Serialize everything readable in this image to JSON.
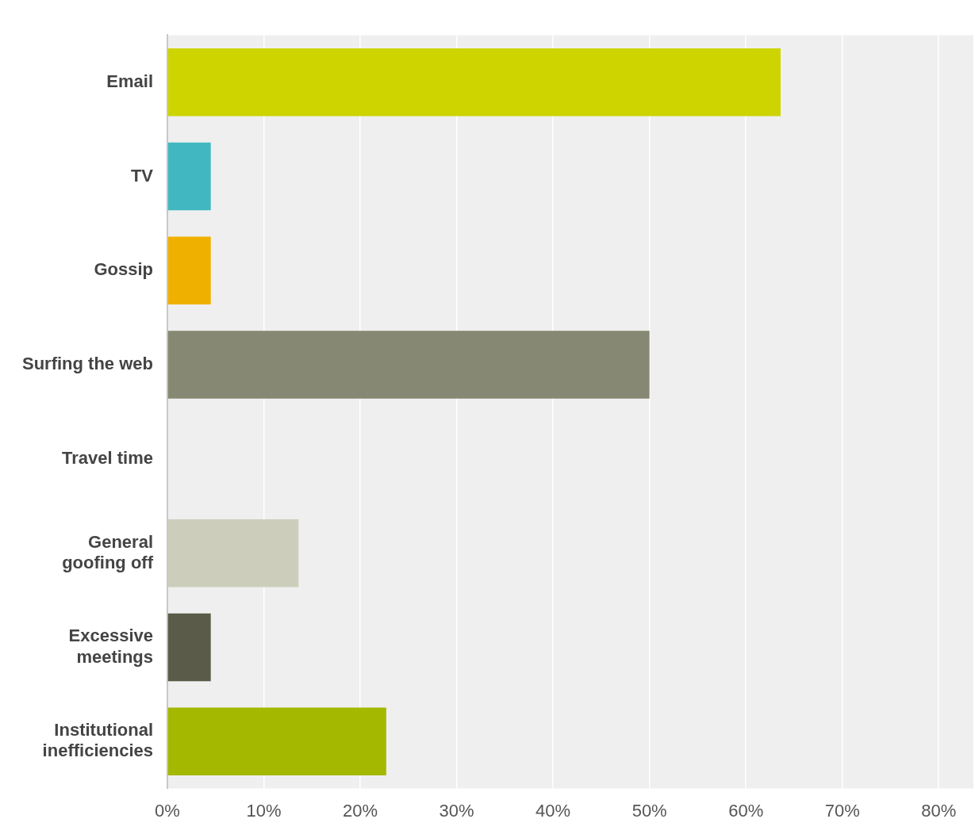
{
  "chart_data": {
    "type": "bar",
    "orientation": "horizontal",
    "categories": [
      "Email",
      "TV",
      "Gossip",
      "Surfing the web",
      "Travel time",
      "General goofing off",
      "Excessive meetings",
      "Institutional inefficiencies"
    ],
    "values": [
      63.6,
      4.5,
      4.5,
      50,
      0,
      13.6,
      4.5,
      22.7
    ],
    "colors": [
      "#cdd400",
      "#41b8c1",
      "#f0b000",
      "#878873",
      "#9aa0a0",
      "#cccebb",
      "#5a5b48",
      "#a5b800"
    ],
    "xlim": [
      0,
      83.6
    ],
    "xticks": [
      {
        "value": 0,
        "label": "0%"
      },
      {
        "value": 10,
        "label": "10%"
      },
      {
        "value": 20,
        "label": "20%"
      },
      {
        "value": 30,
        "label": "30%"
      },
      {
        "value": 40,
        "label": "40%"
      },
      {
        "value": 50,
        "label": "50%"
      },
      {
        "value": 60,
        "label": "60%"
      },
      {
        "value": 70,
        "label": "70%"
      },
      {
        "value": 80,
        "label": "80%"
      }
    ],
    "grid": "x",
    "legend": false
  }
}
